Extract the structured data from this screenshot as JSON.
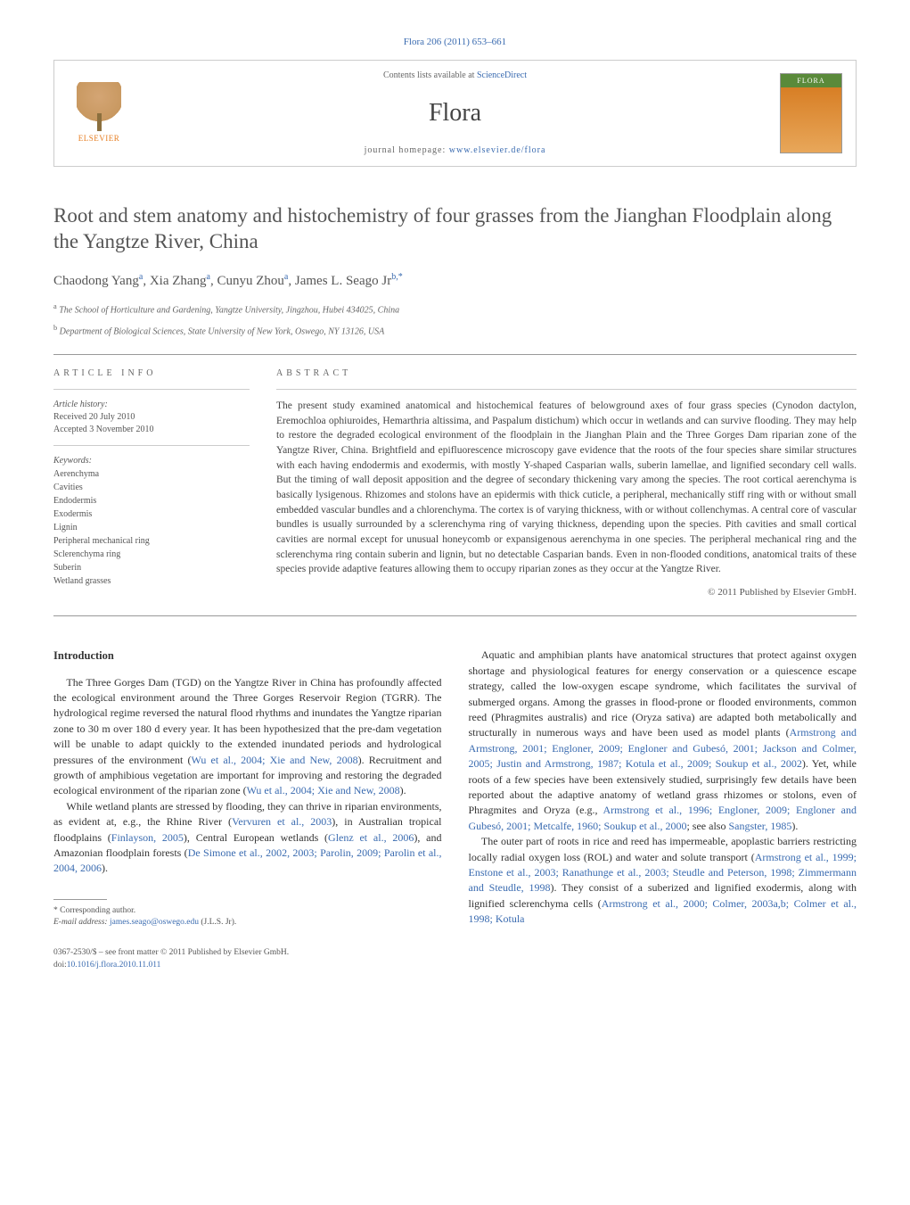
{
  "journal_ref": "Flora 206 (2011) 653–661",
  "header": {
    "contents_prefix": "Contents lists available at ",
    "contents_link": "ScienceDirect",
    "journal_name": "Flora",
    "homepage_prefix": "journal homepage: ",
    "homepage_url": "www.elsevier.de/flora",
    "elsevier_label": "ELSEVIER",
    "cover_label": "FLORA"
  },
  "title": "Root and stem anatomy and histochemistry of four grasses from the Jianghan Floodplain along the Yangtze River, China",
  "authors_html": "Chaodong Yang<sup>a</sup>, Xia Zhang<sup>a</sup>, Cunyu Zhou<sup>a</sup>, James L. Seago Jr<sup>b,*</sup>",
  "affiliations": {
    "a": "The School of Horticulture and Gardening, Yangtze University, Jingzhou, Hubei 434025, China",
    "b": "Department of Biological Sciences, State University of New York, Oswego, NY 13126, USA"
  },
  "article_info": {
    "heading": "ARTICLE INFO",
    "history_label": "Article history:",
    "received": "Received 20 July 2010",
    "accepted": "Accepted 3 November 2010",
    "keywords_label": "Keywords:",
    "keywords": [
      "Aerenchyma",
      "Cavities",
      "Endodermis",
      "Exodermis",
      "Lignin",
      "Peripheral mechanical ring",
      "Sclerenchyma ring",
      "Suberin",
      "Wetland grasses"
    ]
  },
  "abstract": {
    "heading": "ABSTRACT",
    "text": "The present study examined anatomical and histochemical features of belowground axes of four grass species (Cynodon dactylon, Eremochloa ophiuroides, Hemarthria altissima, and Paspalum distichum) which occur in wetlands and can survive flooding. They may help to restore the degraded ecological environment of the floodplain in the Jianghan Plain and the Three Gorges Dam riparian zone of the Yangtze River, China. Brightfield and epifluorescence microscopy gave evidence that the roots of the four species share similar structures with each having endodermis and exodermis, with mostly Y-shaped Casparian walls, suberin lamellae, and lignified secondary cell walls. But the timing of wall deposit apposition and the degree of secondary thickening vary among the species. The root cortical aerenchyma is basically lysigenous. Rhizomes and stolons have an epidermis with thick cuticle, a peripheral, mechanically stiff ring with or without small embedded vascular bundles and a chlorenchyma. The cortex is of varying thickness, with or without collenchymas. A central core of vascular bundles is usually surrounded by a sclerenchyma ring of varying thickness, depending upon the species. Pith cavities and small cortical cavities are normal except for unusual honeycomb or expansigenous aerenchyma in one species. The peripheral mechanical ring and the sclerenchyma ring contain suberin and lignin, but no detectable Casparian bands. Even in non-flooded conditions, anatomical traits of these species provide adaptive features allowing them to occupy riparian zones as they occur at the Yangtze River.",
    "copyright": "© 2011 Published by Elsevier GmbH."
  },
  "body": {
    "intro_heading": "Introduction",
    "col1_p1": "The Three Gorges Dam (TGD) on the Yangtze River in China has profoundly affected the ecological environment around the Three Gorges Reservoir Region (TGRR). The hydrological regime reversed the natural flood rhythms and inundates the Yangtze riparian zone to 30 m over 180 d every year. It has been hypothesized that the pre-dam vegetation will be unable to adapt quickly to the extended inundated periods and hydrological pressures of the environment (",
    "col1_p1_link1": "Wu et al., 2004; Xie and New, 2008",
    "col1_p1_cont": "). Recruitment and growth of amphibious vegetation are important for improving and restoring the degraded ecological environment of the riparian zone (",
    "col1_p1_link2": "Wu et al., 2004; Xie and New, 2008",
    "col1_p1_end": ").",
    "col1_p2_a": "While wetland plants are stressed by flooding, they can thrive in riparian environments, as evident at, e.g., the Rhine River (",
    "col1_p2_link1": "Vervuren et al., 2003",
    "col1_p2_b": "), in Australian tropical floodplains (",
    "col1_p2_link2": "Finlayson, 2005",
    "col1_p2_c": "), Central European wetlands (",
    "col1_p2_link3": "Glenz et al., 2006",
    "col1_p2_d": "), and Amazonian floodplain forests (",
    "col1_p2_link4": "De Simone et al., 2002, 2003; Parolin, 2009; Parolin et al., 2004, 2006",
    "col1_p2_e": ").",
    "col2_p1_a": "Aquatic and amphibian plants have anatomical structures that protect against oxygen shortage and physiological features for energy conservation or a quiescence escape strategy, called the low-oxygen escape syndrome, which facilitates the survival of submerged organs. Among the grasses in flood-prone or flooded environments, common reed (Phragmites australis) and rice (Oryza sativa) are adapted both metabolically and structurally in numerous ways and have been used as model plants (",
    "col2_p1_link1": "Armstrong and Armstrong, 2001; Engloner, 2009; Engloner and Gubesó, 2001; Jackson and Colmer, 2005; Justin and Armstrong, 1987; Kotula et al., 2009; Soukup et al., 2002",
    "col2_p1_b": "). Yet, while roots of a few species have been extensively studied, surprisingly few details have been reported about the adaptive anatomy of wetland grass rhizomes or stolons, even of Phragmites and Oryza (e.g., ",
    "col2_p1_link2": "Armstrong et al., 1996; Engloner, 2009; Engloner and Gubesó, 2001; Metcalfe, 1960; Soukup et al., 2000",
    "col2_p1_c": "; see also ",
    "col2_p1_link3": "Sangster, 1985",
    "col2_p1_d": ").",
    "col2_p2_a": "The outer part of roots in rice and reed has impermeable, apoplastic barriers restricting locally radial oxygen loss (ROL) and water and solute transport (",
    "col2_p2_link1": "Armstrong et al., 1999; Enstone et al., 2003; Ranathunge et al., 2003; Steudle and Peterson, 1998; Zimmermann and Steudle, 1998",
    "col2_p2_b": "). They consist of a suberized and lignified exodermis, along with lignified sclerenchyma cells (",
    "col2_p2_link2": "Armstrong et al., 2000; Colmer, 2003a,b; Colmer et al., 1998; Kotula"
  },
  "footnote": {
    "corr_label": "* Corresponding author.",
    "email_label": "E-mail address: ",
    "email": "james.seago@oswego.edu",
    "email_who": " (J.L.S. Jr)."
  },
  "bottom": {
    "issn_line": "0367-2530/$ – see front matter © 2011 Published by Elsevier GmbH.",
    "doi_prefix": "doi:",
    "doi": "10.1016/j.flora.2010.11.011"
  }
}
